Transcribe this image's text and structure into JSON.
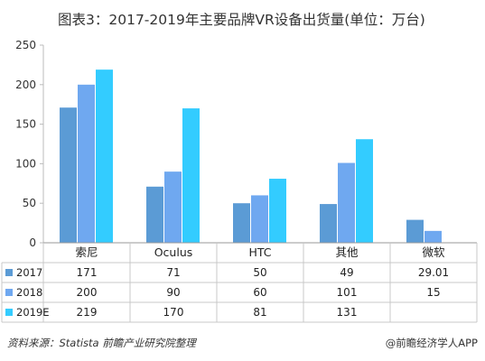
{
  "title": "图表3：2017-2019年主要品牌VR设备出货量(单位：万台)",
  "footer": {
    "source": "资料来源：Statista 前瞻产业研究院整理",
    "brand": "@前瞻经济学人APP"
  },
  "chart_data": {
    "type": "bar",
    "categories": [
      "索尼",
      "Oculus",
      "HTC",
      "其他",
      "微软"
    ],
    "series": [
      {
        "name": "2017",
        "values": [
          171,
          71,
          50,
          49,
          29.01
        ],
        "labels": [
          "171",
          "71",
          "50",
          "49",
          "29.01"
        ],
        "color": "#5b9bd5"
      },
      {
        "name": "2018",
        "values": [
          200,
          90,
          60,
          101,
          15
        ],
        "labels": [
          "200",
          "90",
          "60",
          "101",
          "15"
        ],
        "color": "#6fa8f0"
      },
      {
        "name": "2019E",
        "values": [
          219,
          170,
          81,
          131,
          null
        ],
        "labels": [
          "219",
          "170",
          "81",
          "131",
          ""
        ],
        "color": "#33ccff"
      }
    ],
    "ylim": [
      0,
      250
    ],
    "yticks": [
      0,
      50,
      100,
      150,
      200,
      250
    ],
    "legend": "data-table",
    "grid": false
  }
}
